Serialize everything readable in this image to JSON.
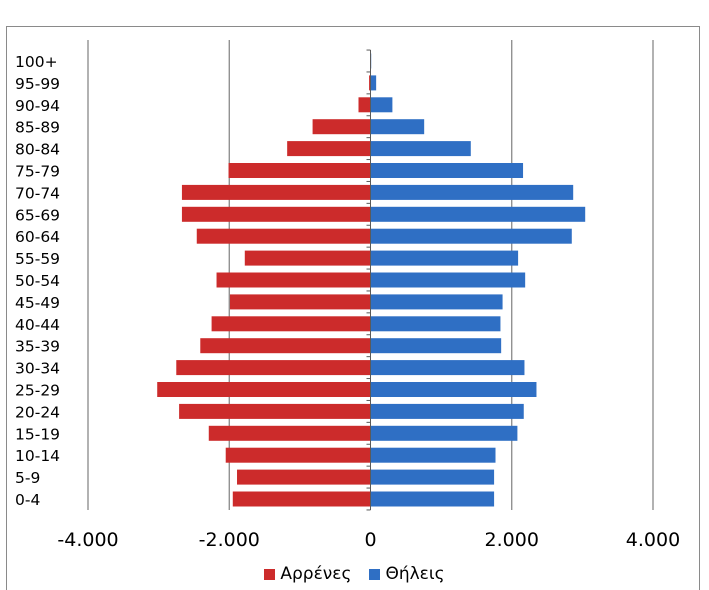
{
  "colors": {
    "male": "#cc2b2b",
    "female": "#2f6fc4",
    "grid": "#7f7f7f"
  },
  "chart_data": {
    "type": "bar",
    "orientation": "horizontal",
    "subtype": "population-pyramid",
    "title": "",
    "xlabel": "",
    "ylabel": "",
    "xlim": [
      -4000,
      4000
    ],
    "xticks": [
      -4000,
      -2000,
      0,
      2000,
      4000
    ],
    "xtick_labels": [
      "-4.000",
      "-2.000",
      "0",
      "2.000",
      "4.000"
    ],
    "grid": "vertical",
    "legend_position": "bottom",
    "categories": [
      "100+",
      "95-99",
      "90-94",
      "85-89",
      "80-84",
      "75-79",
      "70-74",
      "65-69",
      "60-64",
      "55-59",
      "50-54",
      "45-49",
      "40-44",
      "35-39",
      "30-34",
      "25-29",
      "20-24",
      "15-19",
      "10-14",
      "5-9",
      "0-4"
    ],
    "series": [
      {
        "name": "Αρρένες",
        "color": "#cc2b2b",
        "values": [
          0,
          -20,
          -170,
          -820,
          -1180,
          -2010,
          -2670,
          -2670,
          -2460,
          -1780,
          -2180,
          -1990,
          -2250,
          -2410,
          -2750,
          -3020,
          -2710,
          -2290,
          -2050,
          -1890,
          -1950
        ]
      },
      {
        "name": "Θήλεις",
        "color": "#2f6fc4",
        "values": [
          10,
          80,
          310,
          760,
          1420,
          2160,
          2870,
          3040,
          2850,
          2090,
          2190,
          1870,
          1840,
          1850,
          2180,
          2350,
          2170,
          2080,
          1770,
          1750,
          1750
        ]
      }
    ]
  }
}
